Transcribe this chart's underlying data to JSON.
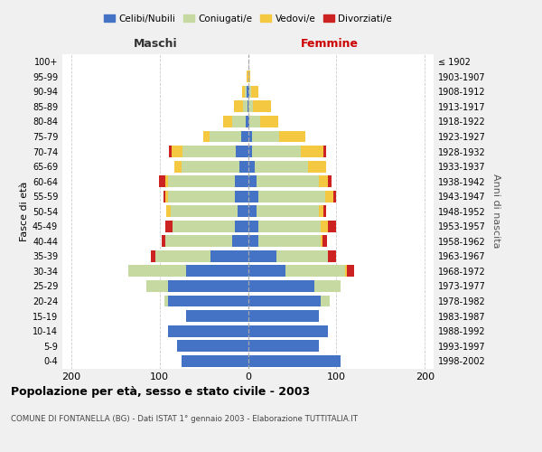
{
  "age_groups": [
    "0-4",
    "5-9",
    "10-14",
    "15-19",
    "20-24",
    "25-29",
    "30-34",
    "35-39",
    "40-44",
    "45-49",
    "50-54",
    "55-59",
    "60-64",
    "65-69",
    "70-74",
    "75-79",
    "80-84",
    "85-89",
    "90-94",
    "95-99",
    "100+"
  ],
  "birth_years": [
    "1998-2002",
    "1993-1997",
    "1988-1992",
    "1983-1987",
    "1978-1982",
    "1973-1977",
    "1968-1972",
    "1963-1967",
    "1958-1962",
    "1953-1957",
    "1948-1952",
    "1943-1947",
    "1938-1942",
    "1933-1937",
    "1928-1932",
    "1923-1927",
    "1918-1922",
    "1913-1917",
    "1908-1912",
    "1903-1907",
    "≤ 1902"
  ],
  "male": {
    "celibi": [
      75,
      80,
      90,
      70,
      90,
      90,
      70,
      42,
      18,
      15,
      12,
      15,
      15,
      10,
      14,
      8,
      3,
      1,
      2,
      0,
      0
    ],
    "coniugati": [
      0,
      0,
      0,
      0,
      5,
      25,
      65,
      63,
      75,
      70,
      75,
      75,
      75,
      65,
      60,
      35,
      15,
      5,
      2,
      0,
      0
    ],
    "vedovi": [
      0,
      0,
      0,
      0,
      0,
      0,
      0,
      0,
      0,
      0,
      5,
      3,
      3,
      8,
      12,
      8,
      10,
      10,
      3,
      2,
      0
    ],
    "divorziati": [
      0,
      0,
      0,
      0,
      0,
      0,
      0,
      5,
      5,
      8,
      0,
      3,
      8,
      0,
      3,
      0,
      0,
      0,
      0,
      0,
      0
    ]
  },
  "female": {
    "nubili": [
      105,
      80,
      90,
      80,
      82,
      75,
      42,
      32,
      12,
      12,
      10,
      12,
      10,
      8,
      5,
      5,
      2,
      1,
      2,
      0,
      0
    ],
    "coniugate": [
      0,
      0,
      0,
      0,
      10,
      30,
      68,
      58,
      70,
      70,
      70,
      75,
      70,
      60,
      55,
      30,
      12,
      5,
      2,
      0,
      0
    ],
    "vedove": [
      0,
      0,
      0,
      0,
      0,
      0,
      2,
      0,
      2,
      8,
      5,
      10,
      10,
      20,
      25,
      30,
      20,
      20,
      8,
      3,
      0
    ],
    "divorziate": [
      0,
      0,
      0,
      0,
      0,
      0,
      8,
      10,
      5,
      10,
      3,
      3,
      5,
      0,
      3,
      0,
      0,
      0,
      0,
      0,
      0
    ]
  },
  "colors": {
    "celibi": "#4472C4",
    "coniugati": "#C5D9A0",
    "vedovi": "#F5C842",
    "divorziati": "#CC2222"
  },
  "xlim": 210,
  "title": "Popolazione per età, sesso e stato civile - 2003",
  "subtitle": "COMUNE DI FONTANELLA (BG) - Dati ISTAT 1° gennaio 2003 - Elaborazione TUTTITALIA.IT",
  "xlabel_left": "Maschi",
  "xlabel_right": "Femmine",
  "ylabel": "Fasce di età",
  "ylabel_right": "Anni di nascita",
  "legend_labels": [
    "Celibi/Nubili",
    "Coniugati/e",
    "Vedovi/e",
    "Divorziati/e"
  ],
  "bg_color": "#f0f0f0",
  "plot_bg": "#ffffff"
}
